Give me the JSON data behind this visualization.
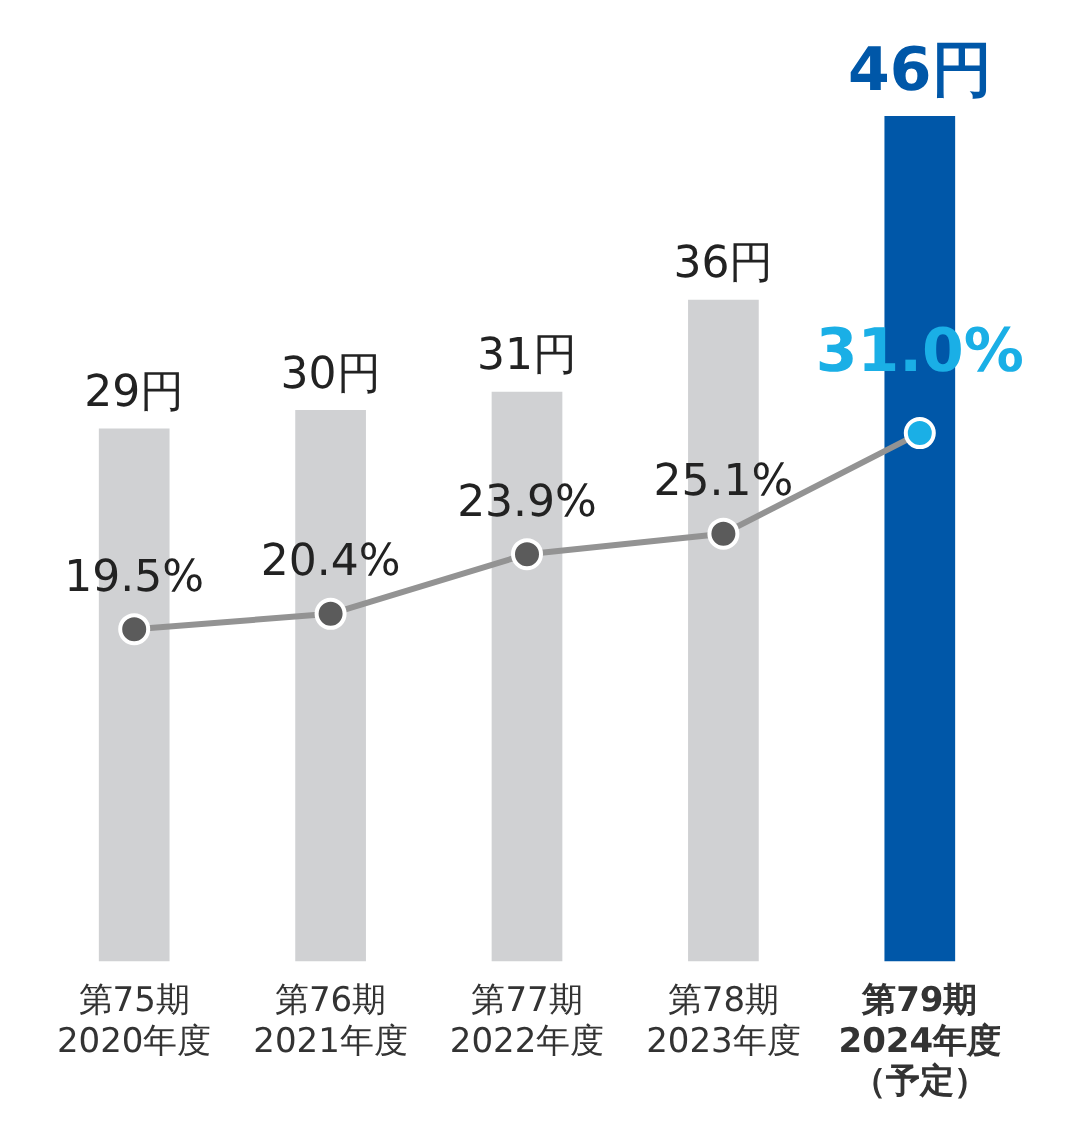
{
  "chart_data": {
    "type": "bar",
    "categories": [
      "第75期\n2020年度",
      "第76期\n2021年度",
      "第77期\n2022年度",
      "第78期\n2023年度",
      "第79期\n2024年度（予定）"
    ],
    "series": [
      {
        "colors": [
          "#d0d1d3",
          "#d0d1d3",
          "#d0d1d3",
          "#d0d1d3",
          "#0057a8"
        ],
        "values": [
          29,
          30,
          31,
          36,
          46
        ],
        "value_labels": [
          "29円",
          "30円",
          "31円",
          "36円",
          "46円"
        ]
      },
      {
        "type": "line",
        "axis": "y2",
        "color": "#939393",
        "colors": [
          "#5b5b5b",
          "#5b5b5b",
          "#5b5b5b",
          "#5b5b5b",
          "#1aafe6"
        ],
        "values": [
          19.5,
          20.4,
          23.9,
          25.1,
          31.0
        ],
        "value_labels": [
          "19.5%",
          "20.4%",
          "23.9%",
          "25.1%",
          "31.0%"
        ]
      }
    ],
    "marker": "circle",
    "legend": false,
    "grid": false,
    "tick_labels": "x"
  }
}
